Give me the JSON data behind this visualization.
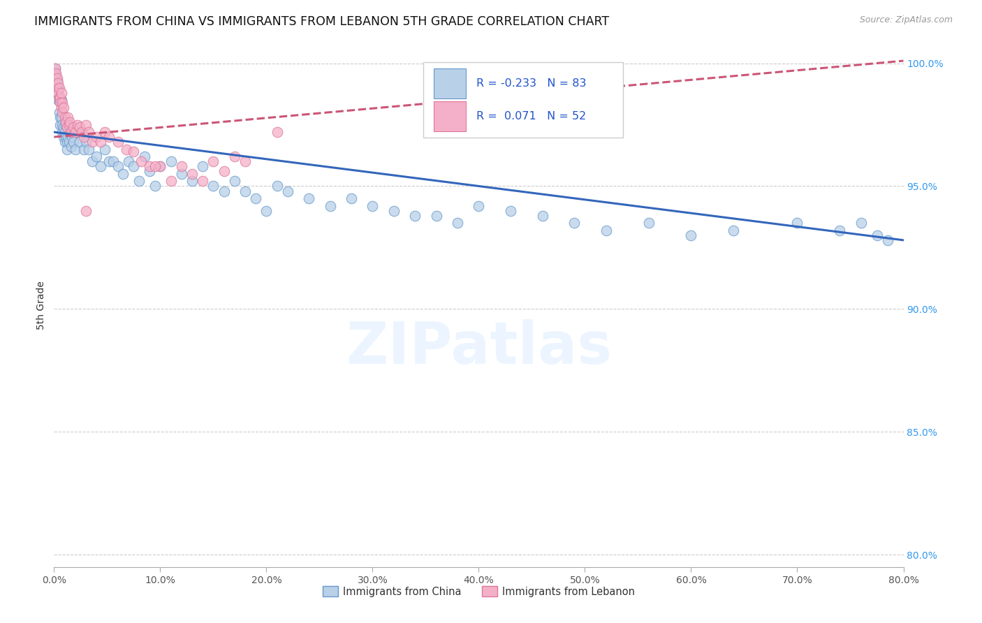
{
  "title": "IMMIGRANTS FROM CHINA VS IMMIGRANTS FROM LEBANON 5TH GRADE CORRELATION CHART",
  "source": "Source: ZipAtlas.com",
  "ylabel_label": "5th Grade",
  "xlim": [
    0.0,
    0.8
  ],
  "ylim": [
    0.795,
    1.008
  ],
  "x_tick_vals": [
    0.0,
    0.1,
    0.2,
    0.3,
    0.4,
    0.5,
    0.6,
    0.7,
    0.8
  ],
  "x_tick_labels": [
    "0.0%",
    "10.0%",
    "20.0%",
    "30.0%",
    "40.0%",
    "50.0%",
    "60.0%",
    "70.0%",
    "80.0%"
  ],
  "y_tick_vals": [
    0.8,
    0.85,
    0.9,
    0.95,
    1.0
  ],
  "y_tick_labels": [
    "80.0%",
    "85.0%",
    "90.0%",
    "95.0%",
    "100.0%"
  ],
  "legend_label_blue": "Immigrants from China",
  "legend_label_pink": "Immigrants from Lebanon",
  "R_blue": -0.233,
  "N_blue": 83,
  "R_pink": 0.071,
  "N_pink": 52,
  "color_blue": "#b8d0e8",
  "color_pink": "#f4b0c8",
  "edge_blue": "#6699cc",
  "edge_pink": "#dd7799",
  "line_blue": "#3366bb",
  "line_pink": "#cc5577",
  "watermark": "ZIPatlas",
  "blue_line_y0": 0.972,
  "blue_line_y1": 0.928,
  "pink_line_y0": 0.97,
  "pink_line_y1": 1.001,
  "china_x": [
    0.001,
    0.002,
    0.003,
    0.003,
    0.004,
    0.004,
    0.005,
    0.005,
    0.006,
    0.006,
    0.007,
    0.007,
    0.008,
    0.008,
    0.009,
    0.009,
    0.01,
    0.01,
    0.011,
    0.011,
    0.012,
    0.012,
    0.013,
    0.014,
    0.015,
    0.016,
    0.017,
    0.018,
    0.02,
    0.022,
    0.024,
    0.026,
    0.028,
    0.03,
    0.033,
    0.036,
    0.04,
    0.044,
    0.048,
    0.052,
    0.056,
    0.06,
    0.065,
    0.07,
    0.075,
    0.08,
    0.085,
    0.09,
    0.095,
    0.1,
    0.11,
    0.12,
    0.13,
    0.14,
    0.15,
    0.16,
    0.17,
    0.18,
    0.19,
    0.2,
    0.21,
    0.22,
    0.24,
    0.26,
    0.28,
    0.3,
    0.32,
    0.34,
    0.36,
    0.38,
    0.4,
    0.43,
    0.46,
    0.49,
    0.52,
    0.56,
    0.6,
    0.64,
    0.7,
    0.74,
    0.76,
    0.775,
    0.785
  ],
  "china_y": [
    0.998,
    0.995,
    0.993,
    0.988,
    0.99,
    0.985,
    0.985,
    0.98,
    0.978,
    0.975,
    0.985,
    0.978,
    0.975,
    0.972,
    0.974,
    0.97,
    0.972,
    0.968,
    0.975,
    0.97,
    0.968,
    0.965,
    0.97,
    0.968,
    0.972,
    0.966,
    0.97,
    0.968,
    0.965,
    0.972,
    0.968,
    0.972,
    0.965,
    0.968,
    0.965,
    0.96,
    0.962,
    0.958,
    0.965,
    0.96,
    0.96,
    0.958,
    0.955,
    0.96,
    0.958,
    0.952,
    0.962,
    0.956,
    0.95,
    0.958,
    0.96,
    0.955,
    0.952,
    0.958,
    0.95,
    0.948,
    0.952,
    0.948,
    0.945,
    0.94,
    0.95,
    0.948,
    0.945,
    0.942,
    0.945,
    0.942,
    0.94,
    0.938,
    0.938,
    0.935,
    0.942,
    0.94,
    0.938,
    0.935,
    0.932,
    0.935,
    0.93,
    0.932,
    0.935,
    0.932,
    0.935,
    0.93,
    0.928
  ],
  "lebanon_x": [
    0.001,
    0.002,
    0.003,
    0.003,
    0.004,
    0.004,
    0.005,
    0.005,
    0.006,
    0.006,
    0.007,
    0.007,
    0.008,
    0.008,
    0.009,
    0.01,
    0.011,
    0.012,
    0.013,
    0.014,
    0.015,
    0.016,
    0.018,
    0.02,
    0.022,
    0.024,
    0.026,
    0.028,
    0.03,
    0.033,
    0.036,
    0.04,
    0.044,
    0.048,
    0.052,
    0.06,
    0.068,
    0.075,
    0.082,
    0.09,
    0.1,
    0.11,
    0.12,
    0.13,
    0.14,
    0.15,
    0.16,
    0.17,
    0.18,
    0.03,
    0.095,
    0.21
  ],
  "lebanon_y": [
    0.998,
    0.996,
    0.994,
    0.99,
    0.992,
    0.988,
    0.99,
    0.986,
    0.986,
    0.984,
    0.988,
    0.982,
    0.984,
    0.98,
    0.982,
    0.978,
    0.976,
    0.974,
    0.978,
    0.975,
    0.976,
    0.972,
    0.974,
    0.972,
    0.975,
    0.974,
    0.972,
    0.97,
    0.975,
    0.972,
    0.968,
    0.97,
    0.968,
    0.972,
    0.97,
    0.968,
    0.965,
    0.964,
    0.96,
    0.958,
    0.958,
    0.952,
    0.958,
    0.955,
    0.952,
    0.96,
    0.956,
    0.962,
    0.96,
    0.94,
    0.958,
    0.972
  ]
}
